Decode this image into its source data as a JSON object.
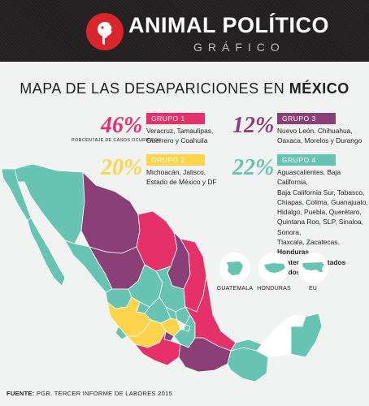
{
  "header": {
    "brand": "ANIMAL POLÍTICO",
    "sub": "GRÁFICO"
  },
  "title": {
    "prefix": "MAPA DE LAS DESAPARICIONES EN ",
    "emphasis": "MÉXICO"
  },
  "colors": {
    "group1": "#e5306a",
    "group2": "#fcd54c",
    "group3": "#8a4077",
    "group4": "#67c3b2",
    "header": "#231f20",
    "logo": "#d9262c"
  },
  "groups": [
    {
      "label": "GRUPO 1",
      "percent": "46%",
      "note": "PORCENTAJE DE CASOS OCURRIDOS",
      "states": [
        "Veracruz, Tamaulipas,",
        "Guerrero y Coahuila"
      ]
    },
    {
      "label": "GRUPO 2",
      "percent": "20%",
      "states": [
        "Michoacán, Jalisco,",
        "Estado de México y DF"
      ]
    },
    {
      "label": "GRUPO 3",
      "percent": "12%",
      "states": [
        "Nuevo León. Chihuahua,",
        "Oaxaca, Morelos y Durango"
      ]
    },
    {
      "label": "GRUPO 4",
      "percent": "22%",
      "states": [
        "Aguascalientes, Baja California,",
        "Baja California Sur, Tabasco,",
        "Chiapas, Colima, Guanajuato,",
        "Hidalgo, Puebla, Querétaro,",
        "Quintana Roo, SLP, Sinaloa, Sonora,",
        "Tlaxcala, Zacatecas."
      ],
      "bold_1": "Honduras",
      "bold_2": "Guatemala",
      "connector": " y ",
      "bold_3": "Estados Unidos",
      "period": "."
    }
  ],
  "countries": [
    {
      "label": "GUATEMALA",
      "icon": "guatemala-icon"
    },
    {
      "label": "HONDURAS",
      "icon": "honduras-icon"
    },
    {
      "label": "EU",
      "icon": "usa-icon"
    }
  ],
  "footer": {
    "label": "FUENTE:",
    "text": " PGR. TERCER INFORME DE LABORES 2015"
  }
}
